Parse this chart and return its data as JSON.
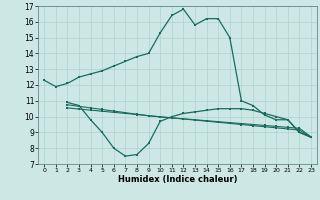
{
  "xlabel": "Humidex (Indice chaleur)",
  "background_color": "#cde8e4",
  "grid_color": "#aad4cc",
  "line_color": "#1a6b5e",
  "xlim": [
    -0.5,
    23.5
  ],
  "ylim": [
    7,
    17
  ],
  "xticks": [
    0,
    1,
    2,
    3,
    4,
    5,
    6,
    7,
    8,
    9,
    10,
    11,
    12,
    13,
    14,
    15,
    16,
    17,
    18,
    19,
    20,
    21,
    22,
    23
  ],
  "yticks": [
    7,
    8,
    9,
    10,
    11,
    12,
    13,
    14,
    15,
    16,
    17
  ],
  "line1_x": [
    0,
    1,
    2,
    3,
    4,
    5,
    6,
    7,
    8,
    9,
    10,
    11,
    12,
    13,
    14,
    15,
    16,
    17,
    18,
    19,
    20,
    21,
    22,
    23
  ],
  "line1_y": [
    12.3,
    11.9,
    12.1,
    12.5,
    12.7,
    12.9,
    13.2,
    13.5,
    13.8,
    14.0,
    15.3,
    16.4,
    16.8,
    15.8,
    16.2,
    16.2,
    15.0,
    11.0,
    10.7,
    10.1,
    9.8,
    9.8,
    9.0,
    8.7
  ],
  "line2_x": [
    2,
    3,
    4,
    5,
    6,
    7,
    8,
    9,
    10,
    11,
    12,
    13,
    14,
    15,
    16,
    17,
    18,
    19,
    20,
    21,
    22,
    23
  ],
  "line2_y": [
    10.9,
    10.7,
    9.8,
    9.0,
    8.0,
    7.5,
    7.6,
    8.3,
    9.7,
    10.0,
    10.2,
    10.3,
    10.4,
    10.5,
    10.5,
    10.5,
    10.4,
    10.2,
    10.0,
    9.8,
    9.0,
    8.7
  ],
  "line3_x": [
    2,
    3,
    4,
    5,
    6,
    7,
    8,
    9,
    10,
    11,
    12,
    13,
    14,
    15,
    16,
    17,
    18,
    19,
    20,
    21,
    22,
    23
  ],
  "line3_y": [
    10.75,
    10.65,
    10.55,
    10.45,
    10.35,
    10.25,
    10.15,
    10.05,
    9.98,
    9.92,
    9.86,
    9.8,
    9.74,
    9.68,
    9.62,
    9.56,
    9.5,
    9.44,
    9.38,
    9.32,
    9.26,
    8.72
  ],
  "line4_x": [
    2,
    3,
    4,
    5,
    6,
    7,
    8,
    9,
    10,
    11,
    12,
    13,
    14,
    15,
    16,
    17,
    18,
    19,
    20,
    21,
    22,
    23
  ],
  "line4_y": [
    10.55,
    10.48,
    10.41,
    10.34,
    10.27,
    10.2,
    10.13,
    10.06,
    9.99,
    9.92,
    9.85,
    9.78,
    9.71,
    9.64,
    9.57,
    9.5,
    9.43,
    9.36,
    9.29,
    9.22,
    9.15,
    8.68
  ]
}
